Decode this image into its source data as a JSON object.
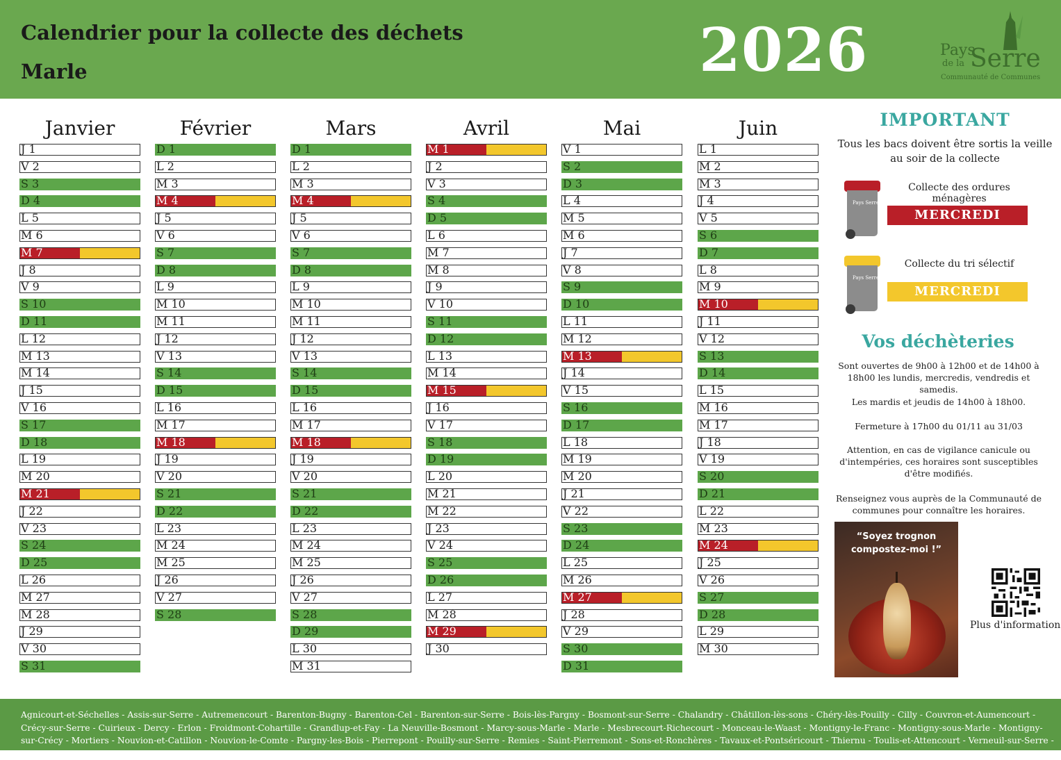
{
  "header": {
    "title_line1": "Calendrier pour la collecte des déchets",
    "title_line2": "Marle",
    "year": "2026",
    "logo": {
      "word1": "Pays",
      "word2": "de la",
      "word3": "Serre",
      "subtitle": "Communauté de Communes"
    }
  },
  "colors": {
    "weekend_green": "#5da64a",
    "collect_red": "#b91f28",
    "collect_yellow": "#f3c72c",
    "accent_teal": "#3aa7a0"
  },
  "months": [
    {
      "name": "Janvier",
      "days": [
        {
          "l": "J 1",
          "t": ""
        },
        {
          "l": "V 2",
          "t": ""
        },
        {
          "l": "S 3",
          "t": "we"
        },
        {
          "l": "D 4",
          "t": "we"
        },
        {
          "l": "L 5",
          "t": ""
        },
        {
          "l": "M 6",
          "t": ""
        },
        {
          "l": "M 7",
          "t": "col"
        },
        {
          "l": "J 8",
          "t": ""
        },
        {
          "l": "V 9",
          "t": ""
        },
        {
          "l": "S 10",
          "t": "we"
        },
        {
          "l": "D 11",
          "t": "we"
        },
        {
          "l": "L 12",
          "t": ""
        },
        {
          "l": "M 13",
          "t": ""
        },
        {
          "l": "M 14",
          "t": ""
        },
        {
          "l": "J 15",
          "t": ""
        },
        {
          "l": "V 16",
          "t": ""
        },
        {
          "l": "S 17",
          "t": "we"
        },
        {
          "l": "D 18",
          "t": "we"
        },
        {
          "l": "L 19",
          "t": ""
        },
        {
          "l": "M 20",
          "t": ""
        },
        {
          "l": "M 21",
          "t": "col"
        },
        {
          "l": "J 22",
          "t": ""
        },
        {
          "l": "V 23",
          "t": ""
        },
        {
          "l": "S 24",
          "t": "we"
        },
        {
          "l": "D 25",
          "t": "we"
        },
        {
          "l": "L 26",
          "t": ""
        },
        {
          "l": "M 27",
          "t": ""
        },
        {
          "l": "M 28",
          "t": ""
        },
        {
          "l": "J 29",
          "t": ""
        },
        {
          "l": "V 30",
          "t": ""
        },
        {
          "l": "S 31",
          "t": "we"
        }
      ]
    },
    {
      "name": "Février",
      "days": [
        {
          "l": "D 1",
          "t": "we"
        },
        {
          "l": "L 2",
          "t": ""
        },
        {
          "l": "M 3",
          "t": ""
        },
        {
          "l": "M 4",
          "t": "col"
        },
        {
          "l": "J 5",
          "t": ""
        },
        {
          "l": "V 6",
          "t": ""
        },
        {
          "l": "S 7",
          "t": "we"
        },
        {
          "l": "D 8",
          "t": "we"
        },
        {
          "l": "L 9",
          "t": ""
        },
        {
          "l": "M 10",
          "t": ""
        },
        {
          "l": "M 11",
          "t": ""
        },
        {
          "l": "J 12",
          "t": ""
        },
        {
          "l": "V 13",
          "t": ""
        },
        {
          "l": "S 14",
          "t": "we"
        },
        {
          "l": "D 15",
          "t": "we"
        },
        {
          "l": "L 16",
          "t": ""
        },
        {
          "l": "M 17",
          "t": ""
        },
        {
          "l": "M 18",
          "t": "col"
        },
        {
          "l": "J 19",
          "t": ""
        },
        {
          "l": "V 20",
          "t": ""
        },
        {
          "l": "S 21",
          "t": "we"
        },
        {
          "l": "D 22",
          "t": "we"
        },
        {
          "l": "L 23",
          "t": ""
        },
        {
          "l": "M 24",
          "t": ""
        },
        {
          "l": "M 25",
          "t": ""
        },
        {
          "l": "J 26",
          "t": ""
        },
        {
          "l": "V 27",
          "t": ""
        },
        {
          "l": "S 28",
          "t": "we"
        }
      ]
    },
    {
      "name": "Mars",
      "days": [
        {
          "l": "D 1",
          "t": "we"
        },
        {
          "l": "L 2",
          "t": ""
        },
        {
          "l": "M 3",
          "t": ""
        },
        {
          "l": "M 4",
          "t": "col"
        },
        {
          "l": "J 5",
          "t": ""
        },
        {
          "l": "V 6",
          "t": ""
        },
        {
          "l": "S 7",
          "t": "we"
        },
        {
          "l": "D 8",
          "t": "we"
        },
        {
          "l": "L 9",
          "t": ""
        },
        {
          "l": "M 10",
          "t": ""
        },
        {
          "l": "M 11",
          "t": ""
        },
        {
          "l": "J 12",
          "t": ""
        },
        {
          "l": "V 13",
          "t": ""
        },
        {
          "l": "S 14",
          "t": "we"
        },
        {
          "l": "D 15",
          "t": "we"
        },
        {
          "l": "L 16",
          "t": ""
        },
        {
          "l": "M 17",
          "t": ""
        },
        {
          "l": "M 18",
          "t": "col"
        },
        {
          "l": "J 19",
          "t": ""
        },
        {
          "l": "V 20",
          "t": ""
        },
        {
          "l": "S 21",
          "t": "we"
        },
        {
          "l": "D 22",
          "t": "we"
        },
        {
          "l": "L 23",
          "t": ""
        },
        {
          "l": "M 24",
          "t": ""
        },
        {
          "l": "M 25",
          "t": ""
        },
        {
          "l": "J 26",
          "t": ""
        },
        {
          "l": "V 27",
          "t": ""
        },
        {
          "l": "S 28",
          "t": "we"
        },
        {
          "l": "D 29",
          "t": "we"
        },
        {
          "l": "L 30",
          "t": ""
        },
        {
          "l": "M 31",
          "t": ""
        }
      ]
    },
    {
      "name": "Avril",
      "days": [
        {
          "l": "M 1",
          "t": "col"
        },
        {
          "l": "J 2",
          "t": ""
        },
        {
          "l": "V 3",
          "t": ""
        },
        {
          "l": "S 4",
          "t": "we"
        },
        {
          "l": "D 5",
          "t": "we"
        },
        {
          "l": "L 6",
          "t": ""
        },
        {
          "l": "M 7",
          "t": ""
        },
        {
          "l": "M 8",
          "t": ""
        },
        {
          "l": "J 9",
          "t": ""
        },
        {
          "l": "V 10",
          "t": ""
        },
        {
          "l": "S 11",
          "t": "we"
        },
        {
          "l": "D 12",
          "t": "we"
        },
        {
          "l": "L 13",
          "t": ""
        },
        {
          "l": "M 14",
          "t": ""
        },
        {
          "l": "M 15",
          "t": "col"
        },
        {
          "l": "J 16",
          "t": ""
        },
        {
          "l": "V 17",
          "t": ""
        },
        {
          "l": "S 18",
          "t": "we"
        },
        {
          "l": "D 19",
          "t": "we"
        },
        {
          "l": "L 20",
          "t": ""
        },
        {
          "l": "M 21",
          "t": ""
        },
        {
          "l": "M 22",
          "t": ""
        },
        {
          "l": "J 23",
          "t": ""
        },
        {
          "l": "V 24",
          "t": ""
        },
        {
          "l": "S 25",
          "t": "we"
        },
        {
          "l": "D 26",
          "t": "we"
        },
        {
          "l": "L 27",
          "t": ""
        },
        {
          "l": "M 28",
          "t": ""
        },
        {
          "l": "M 29",
          "t": "col"
        },
        {
          "l": "J 30",
          "t": ""
        }
      ]
    },
    {
      "name": "Mai",
      "days": [
        {
          "l": "V 1",
          "t": ""
        },
        {
          "l": "S 2",
          "t": "we"
        },
        {
          "l": "D 3",
          "t": "we"
        },
        {
          "l": "L 4",
          "t": ""
        },
        {
          "l": "M 5",
          "t": ""
        },
        {
          "l": "M 6",
          "t": ""
        },
        {
          "l": "J 7",
          "t": ""
        },
        {
          "l": "V 8",
          "t": ""
        },
        {
          "l": "S 9",
          "t": "we"
        },
        {
          "l": "D 10",
          "t": "we"
        },
        {
          "l": "L 11",
          "t": ""
        },
        {
          "l": "M 12",
          "t": ""
        },
        {
          "l": "M 13",
          "t": "col"
        },
        {
          "l": "J 14",
          "t": ""
        },
        {
          "l": "V 15",
          "t": ""
        },
        {
          "l": "S 16",
          "t": "we"
        },
        {
          "l": "D 17",
          "t": "we"
        },
        {
          "l": "L 18",
          "t": ""
        },
        {
          "l": "M 19",
          "t": ""
        },
        {
          "l": "M 20",
          "t": ""
        },
        {
          "l": "J 21",
          "t": ""
        },
        {
          "l": "V 22",
          "t": ""
        },
        {
          "l": "S 23",
          "t": "we"
        },
        {
          "l": "D 24",
          "t": "we"
        },
        {
          "l": "L 25",
          "t": ""
        },
        {
          "l": "M 26",
          "t": ""
        },
        {
          "l": "M 27",
          "t": "col"
        },
        {
          "l": "J 28",
          "t": ""
        },
        {
          "l": "V 29",
          "t": ""
        },
        {
          "l": "S 30",
          "t": "we"
        },
        {
          "l": "D 31",
          "t": "we"
        }
      ]
    },
    {
      "name": "Juin",
      "days": [
        {
          "l": "L 1",
          "t": ""
        },
        {
          "l": "M 2",
          "t": ""
        },
        {
          "l": "M 3",
          "t": ""
        },
        {
          "l": "J 4",
          "t": ""
        },
        {
          "l": "V 5",
          "t": ""
        },
        {
          "l": "S 6",
          "t": "we"
        },
        {
          "l": "D 7",
          "t": "we"
        },
        {
          "l": "L 8",
          "t": ""
        },
        {
          "l": "M 9",
          "t": ""
        },
        {
          "l": "M 10",
          "t": "col"
        },
        {
          "l": "J 11",
          "t": ""
        },
        {
          "l": "V 12",
          "t": ""
        },
        {
          "l": "S 13",
          "t": "we"
        },
        {
          "l": "D 14",
          "t": "we"
        },
        {
          "l": "L 15",
          "t": ""
        },
        {
          "l": "M 16",
          "t": ""
        },
        {
          "l": "M 17",
          "t": ""
        },
        {
          "l": "J 18",
          "t": ""
        },
        {
          "l": "V 19",
          "t": ""
        },
        {
          "l": "S 20",
          "t": "we"
        },
        {
          "l": "D 21",
          "t": "we"
        },
        {
          "l": "L 22",
          "t": ""
        },
        {
          "l": "M 23",
          "t": ""
        },
        {
          "l": "M 24",
          "t": "col"
        },
        {
          "l": "J 25",
          "t": ""
        },
        {
          "l": "V 26",
          "t": ""
        },
        {
          "l": "S 27",
          "t": "we"
        },
        {
          "l": "D 28",
          "t": "we"
        },
        {
          "l": "L 29",
          "t": ""
        },
        {
          "l": "M 30",
          "t": ""
        }
      ]
    }
  ],
  "important": {
    "title": "IMPORTANT",
    "text": "Tous les bacs doivent être sortis la veille au soir de la collecte",
    "om_label": "Collecte des ordures ménagères",
    "om_day": "MERCREDI",
    "tri_label": "Collecte du tri sélectif",
    "tri_day": "MERCREDI",
    "bin_mark": "Pays Serre"
  },
  "decheteries": {
    "title": "Vos déchèteries",
    "p1": "Sont ouvertes de 9h00 à 12h00 et de 14h00 à 18h00 les lundis, mercredis, vendredis et samedis.",
    "p2": "Les mardis et jeudis de 14h00 à 18h00.",
    "p3": "Fermeture à 17h00 du 01/11 au 31/03",
    "p4": "Attention, en cas de vigilance canicule ou d'intempéries, ces horaires sont susceptibles d'être modifiés.",
    "p5": "Renseignez vous auprès de la Communauté de communes pour connaître les horaires."
  },
  "poster": {
    "quote": "“Soyez trognon compostez-moi !”"
  },
  "qr": {
    "label": "Plus d'informations"
  },
  "footer": {
    "communes": "Agnicourt-et-Séchelles - Assis-sur-Serre - Autremencourt - Barenton-Bugny - Barenton-Cel - Barenton-sur-Serre - Bois-lès-Pargny - Bosmont-sur-Serre - Chalandry - Châtillon-lès-sons - Chéry-lès-Pouilly - Cilly - Couvron-et-Aumencourt - Crécy-sur-Serre - Cuirieux - Dercy - Erlon - Froidmont-Cohartille - Grandlup-et-Fay - La Neuville-Bosmont - Marcy-sous-Marle - Marle - Mesbrecourt-Richecourt - Monceau-le-Waast - Montigny-le-Franc - Montigny-sous-Marle - Montigny-sur-Crécy - Mortiers - Nouvion-et-Catillon - Nouvion-le-Comte - Pargny-les-Bois - Pierrepont - Pouilly-sur-Serre - Remies - Saint-Pierremont - Sons-et-Ronchères - Tavaux-et-Pontséricourt - Thiernu - Toulis-et-Attencourt - Verneuil-sur-Serre - Vesles-et-Caumont - Voyenne"
  }
}
